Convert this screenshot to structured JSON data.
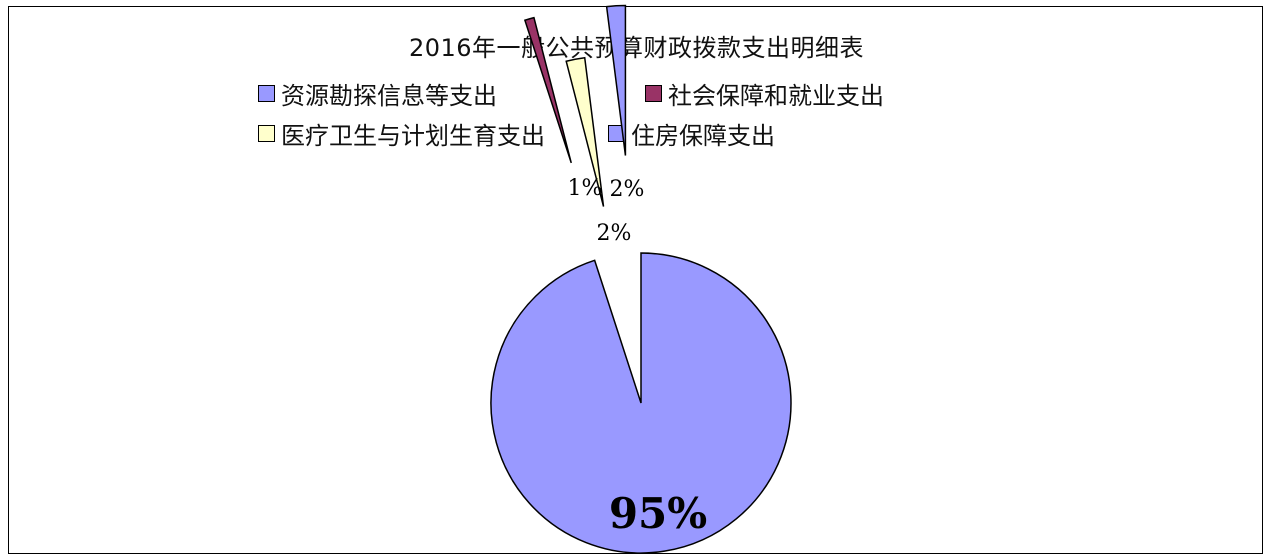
{
  "chart_data": {
    "type": "pie",
    "title": "2016年一般公共预算财政拨款支出明细表",
    "slices": [
      {
        "name": "资源勘探信息等支出",
        "value": 95,
        "label": "95%",
        "color": "#9999ff"
      },
      {
        "name": "社会保障和就业支出",
        "value": 1,
        "label": "1%",
        "color": "#993366"
      },
      {
        "name": "医疗卫生与计划生育支出",
        "value": 2,
        "label": "2%",
        "color": "#ffffcc"
      },
      {
        "name": "住房保障支出",
        "value": 2,
        "label": "2%",
        "color": "#9999ff"
      }
    ],
    "legend_position": "top",
    "exploded": true
  }
}
